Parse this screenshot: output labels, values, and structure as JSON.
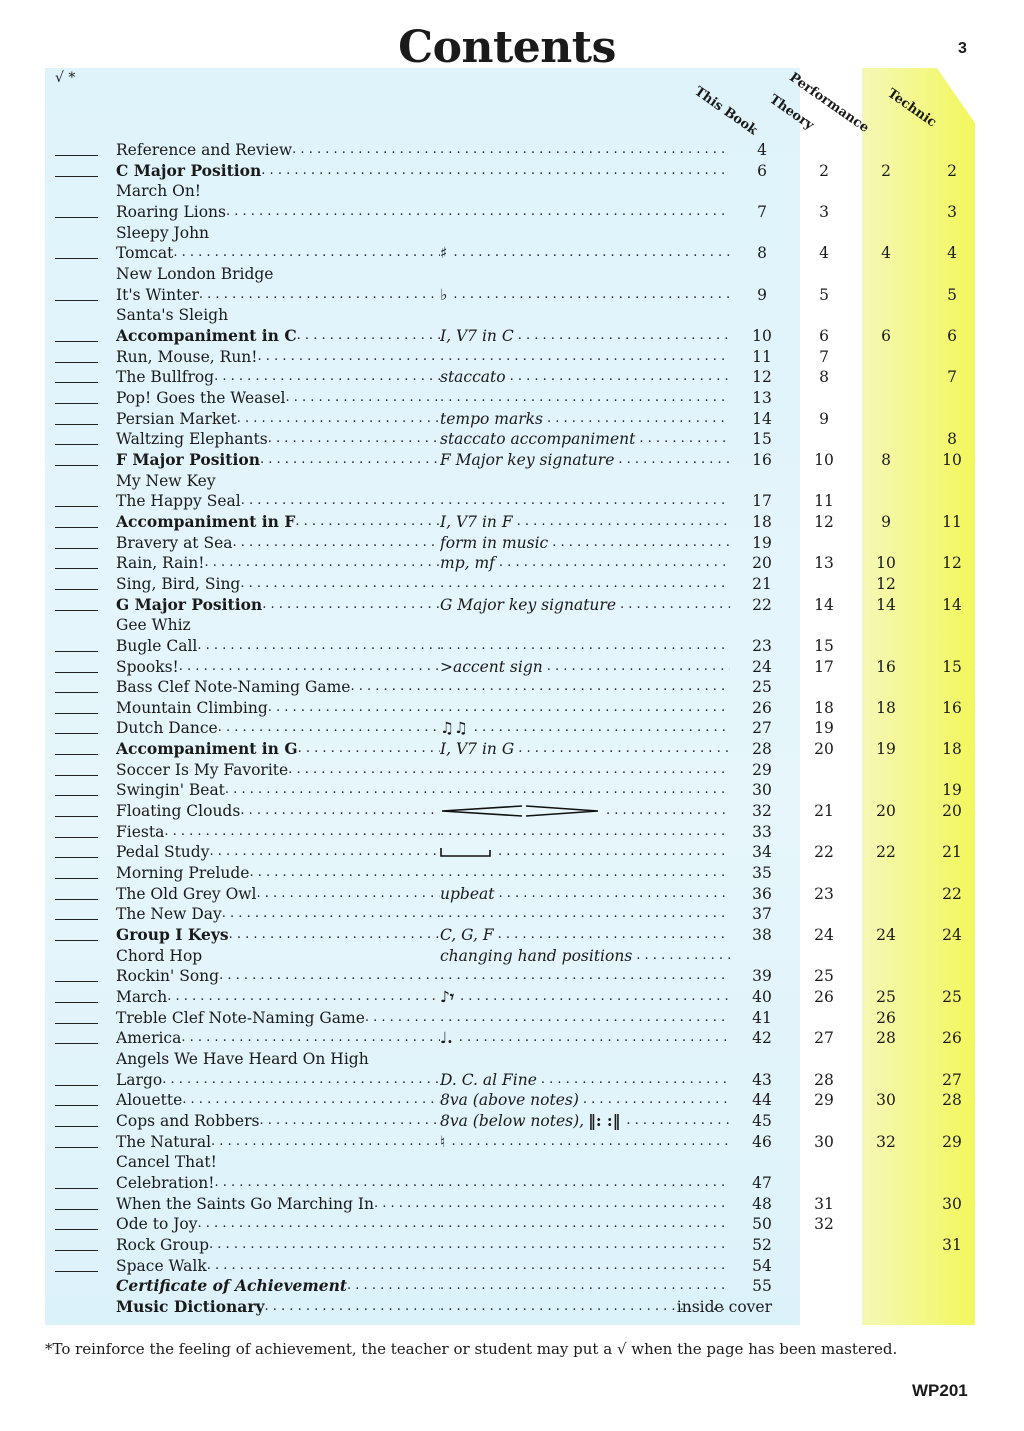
{
  "title": "Contents",
  "page_number": "3",
  "check_header": "√ *",
  "columns": {
    "this_book": "This Book",
    "theory": "Theory",
    "performance": "Performance",
    "technic": "Technic"
  },
  "colors": {
    "panel_blue": "#dff3fb",
    "band_yellow": "#f4f86a"
  },
  "rows": [
    {
      "line": true,
      "t": "Reference and Review",
      "d": true,
      "p": "4"
    },
    {
      "line": true,
      "t": "C Major Position",
      "b": true,
      "d": true,
      "p": "6",
      "th": "2",
      "pf": "2",
      "te": "2"
    },
    {
      "line": false,
      "t": "March On!"
    },
    {
      "line": true,
      "t": "Roaring Lions",
      "d": true,
      "p": "7",
      "th": "3",
      "te": "3"
    },
    {
      "line": false,
      "t": "Sleepy John"
    },
    {
      "line": true,
      "t": "Tomcat",
      "d": true,
      "icon": "sharp-icon",
      "sym": "♯",
      "p": "8",
      "th": "4",
      "pf": "4",
      "te": "4"
    },
    {
      "line": false,
      "t": "New London Bridge"
    },
    {
      "line": true,
      "t": "It's Winter",
      "d": true,
      "icon": "flat-icon",
      "sym": "♭",
      "p": "9",
      "th": "5",
      "te": "5"
    },
    {
      "line": false,
      "t": "Santa's Sleigh"
    },
    {
      "line": true,
      "t": "Accompaniment in C",
      "b": true,
      "d": true,
      "c": "I, V7 in C",
      "p": "10",
      "th": "6",
      "pf": "6",
      "te": "6"
    },
    {
      "line": true,
      "t": "Run, Mouse, Run!",
      "d": true,
      "p": "11",
      "th": "7"
    },
    {
      "line": true,
      "t": "The Bullfrog",
      "d": true,
      "c": "staccato",
      "p": "12",
      "th": "8",
      "te": "7"
    },
    {
      "line": true,
      "t": "Pop! Goes the Weasel",
      "d": true,
      "p": "13"
    },
    {
      "line": true,
      "t": "Persian Market",
      "d": true,
      "c": "tempo marks",
      "p": "14",
      "th": "9"
    },
    {
      "line": true,
      "t": "Waltzing Elephants",
      "d": true,
      "c": "staccato accompaniment",
      "p": "15",
      "te": "8"
    },
    {
      "line": true,
      "t": "F Major Position",
      "b": true,
      "d": true,
      "c": "F Major key signature",
      "p": "16",
      "th": "10",
      "pf": "8",
      "te": "10"
    },
    {
      "line": false,
      "t": "My New Key"
    },
    {
      "line": true,
      "t": "The Happy Seal",
      "d": true,
      "p": "17",
      "th": "11"
    },
    {
      "line": true,
      "t": "Accompaniment in F",
      "b": true,
      "d": true,
      "c": "I, V7 in F",
      "p": "18",
      "th": "12",
      "pf": "9",
      "te": "11"
    },
    {
      "line": true,
      "t": "Bravery at Sea",
      "d": true,
      "c": "form in music",
      "p": "19"
    },
    {
      "line": true,
      "t": "Rain, Rain!",
      "d": true,
      "c": "mp, mf",
      "p": "20",
      "th": "13",
      "pf": "10",
      "te": "12"
    },
    {
      "line": true,
      "t": "Sing, Bird, Sing",
      "d": true,
      "p": "21",
      "pf": "12"
    },
    {
      "line": true,
      "t": "G Major Position",
      "b": true,
      "d": true,
      "c": "G Major key signature",
      "p": "22",
      "th": "14",
      "pf": "14",
      "te": "14"
    },
    {
      "line": false,
      "t": "Gee Whiz"
    },
    {
      "line": true,
      "t": "Bugle Call",
      "d": true,
      "p": "23",
      "th": "15"
    },
    {
      "line": true,
      "t": "Spooks!",
      "d": true,
      "c": ">accent sign",
      "p": "24",
      "th": "17",
      "pf": "16",
      "te": "15"
    },
    {
      "line": true,
      "t": "Bass Clef Note-Naming Game",
      "d": true,
      "p": "25"
    },
    {
      "line": true,
      "t": "Mountain Climbing",
      "d": true,
      "p": "26",
      "th": "18",
      "pf": "18",
      "te": "16"
    },
    {
      "line": true,
      "t": "Dutch Dance",
      "d": true,
      "icon": "beamed-eighth-notes-icon",
      "sym": "♫♫",
      "p": "27",
      "th": "19"
    },
    {
      "line": true,
      "t": "Accompaniment in G",
      "b": true,
      "d": true,
      "c": "I, V7 in G",
      "p": "28",
      "th": "20",
      "pf": "19",
      "te": "18"
    },
    {
      "line": true,
      "t": "Soccer Is My Favorite",
      "d": true,
      "p": "29"
    },
    {
      "line": true,
      "t": "Swingin' Beat",
      "d": true,
      "p": "30",
      "te": "19"
    },
    {
      "line": true,
      "t": "Floating Clouds",
      "d": true,
      "icon": "crescendo-decrescendo-icon",
      "sym": "",
      "p": "32",
      "th": "21",
      "pf": "20",
      "te": "20"
    },
    {
      "line": true,
      "t": "Fiesta",
      "d": true,
      "p": "33"
    },
    {
      "line": true,
      "t": "Pedal Study",
      "d": true,
      "icon": "pedal-mark-icon",
      "sym": "",
      "p": "34",
      "th": "22",
      "pf": "22",
      "te": "21"
    },
    {
      "line": true,
      "t": "Morning Prelude",
      "d": true,
      "p": "35"
    },
    {
      "line": true,
      "t": "The Old Grey Owl",
      "d": true,
      "c": "upbeat",
      "p": "36",
      "th": "23",
      "te": "22"
    },
    {
      "line": true,
      "t": "The New Day",
      "d": true,
      "p": "37"
    },
    {
      "line": true,
      "t": "Group I Keys",
      "b": true,
      "d": true,
      "c": "C, G, F",
      "p": "38",
      "th": "24",
      "pf": "24",
      "te": "24"
    },
    {
      "line": false,
      "t": "Chord Hop",
      "c": "changing hand positions",
      "cd": true
    },
    {
      "line": true,
      "t": "Rockin' Song",
      "d": true,
      "p": "39",
      "th": "25"
    },
    {
      "line": true,
      "t": "March",
      "d": true,
      "icon": "eighth-note-rest-icon",
      "sym": "♪𝄾",
      "p": "40",
      "th": "26",
      "pf": "25",
      "te": "25"
    },
    {
      "line": true,
      "t": "Treble Clef Note-Naming Game",
      "d": true,
      "p": "41",
      "pf": "26"
    },
    {
      "line": true,
      "t": "America",
      "d": true,
      "icon": "dotted-quarter-note-icon",
      "sym": "♩.",
      "p": "42",
      "th": "27",
      "pf": "28",
      "te": "26"
    },
    {
      "line": false,
      "t": "Angels We Have Heard On High"
    },
    {
      "line": true,
      "t": "Largo",
      "d": true,
      "c": "D. C. al Fine",
      "p": "43",
      "th": "28",
      "te": "27"
    },
    {
      "line": true,
      "t": "Alouette",
      "d": true,
      "c": "8va (above notes)",
      "p": "44",
      "th": "29",
      "pf": "30",
      "te": "28"
    },
    {
      "line": true,
      "t": "Cops and Robbers",
      "d": true,
      "c": "8va (below notes),",
      "icon": "repeat-signs-icon",
      "sym": "‖:      :‖",
      "p": "45"
    },
    {
      "line": true,
      "t": "The Natural",
      "d": true,
      "icon": "natural-icon",
      "sym": "♮",
      "p": "46",
      "th": "30",
      "pf": "32",
      "te": "29"
    },
    {
      "line": false,
      "t": "Cancel That!"
    },
    {
      "line": true,
      "t": "Celebration!",
      "d": true,
      "p": "47"
    },
    {
      "line": true,
      "t": "When the Saints Go Marching In",
      "d": true,
      "p": "48",
      "th": "31",
      "te": "30"
    },
    {
      "line": true,
      "t": "Ode to Joy",
      "d": true,
      "p": "50",
      "th": "32"
    },
    {
      "line": true,
      "t": "Rock Group",
      "d": true,
      "p": "52",
      "te": "31"
    },
    {
      "line": true,
      "t": "Space Walk",
      "d": true,
      "p": "54"
    },
    {
      "line": false,
      "t": "Certificate of Achievement",
      "b": true,
      "i": true,
      "d": true,
      "p": "55"
    },
    {
      "line": false,
      "t": "Music Dictionary",
      "b": true,
      "d": true,
      "pw": "inside cover"
    }
  ],
  "footnote": "*To reinforce the feeling of achievement, the teacher or student may put a √ when the page has been mastered.",
  "code": "WP201"
}
